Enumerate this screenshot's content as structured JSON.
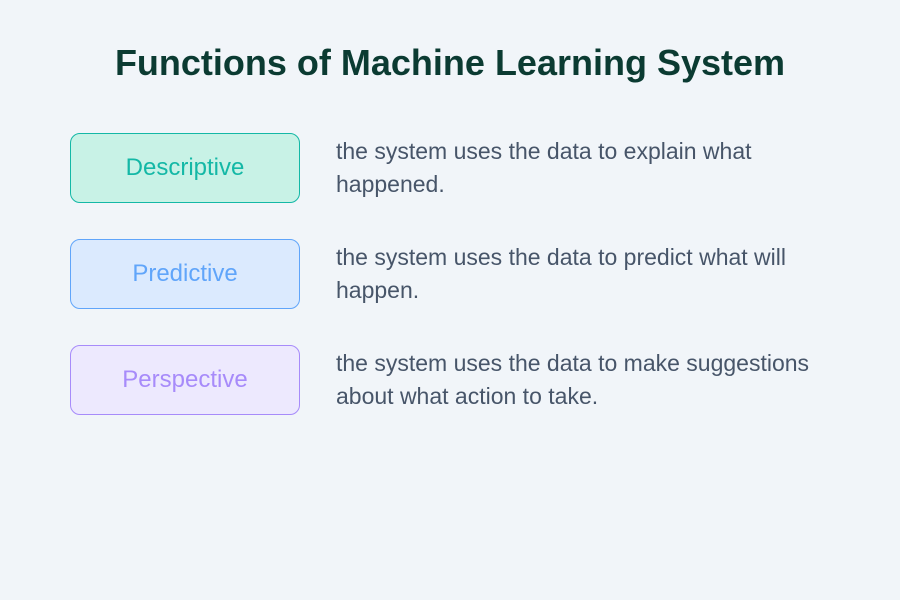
{
  "title": "Functions of Machine Learning System",
  "title_color": "#0b3b32",
  "title_fontsize": 36,
  "background_color": "#f1f5f9",
  "desc_color": "#475569",
  "desc_fontsize": 23,
  "badge_fontsize": 24,
  "badge_width": 230,
  "badge_height": 70,
  "badge_border_radius": 10,
  "row_gap": 36,
  "items": [
    {
      "label": "Descriptive",
      "description": "the system uses the data to explain what happened.",
      "fill": "#c8f2e6",
      "border": "#14b8a6",
      "text": "#14b8a6"
    },
    {
      "label": "Predictive",
      "description": "the system uses the data to predict what will happen.",
      "fill": "#dbeafe",
      "border": "#60a5fa",
      "text": "#60a5fa"
    },
    {
      "label": "Perspective",
      "description": "the system uses the data to make suggestions about what action to take.",
      "fill": "#ede9fe",
      "border": "#a78bfa",
      "text": "#a78bfa"
    }
  ]
}
